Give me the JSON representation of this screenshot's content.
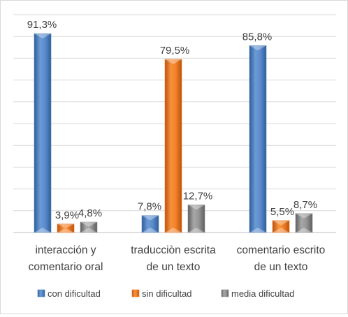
{
  "chart_data": {
    "type": "bar",
    "title": "",
    "xlabel": "",
    "ylabel": "",
    "ylim": [
      0,
      100
    ],
    "grid": true,
    "legend_position": "bottom",
    "categories": [
      [
        "interacción y",
        "comentario oral"
      ],
      [
        "traducciòn escrita",
        "de un texto"
      ],
      [
        "comentario escrito",
        "de un texto"
      ]
    ],
    "series": [
      {
        "name": "con dificultad",
        "color": "#4f81bd",
        "values": [
          91.3,
          7.8,
          85.8
        ],
        "labels": [
          "91,3%",
          "7,8%",
          "85,8%"
        ]
      },
      {
        "name": "sin dificultad",
        "color": "#f07c2a",
        "values": [
          3.9,
          79.5,
          5.5
        ],
        "labels": [
          "3,9%",
          "79,5%",
          "5,5%"
        ]
      },
      {
        "name": "media  dificultad",
        "color": "#8c8c8c",
        "values": [
          4.8,
          12.7,
          8.7
        ],
        "labels": [
          "4,8%",
          "12,7%",
          "8,7%"
        ]
      }
    ]
  }
}
